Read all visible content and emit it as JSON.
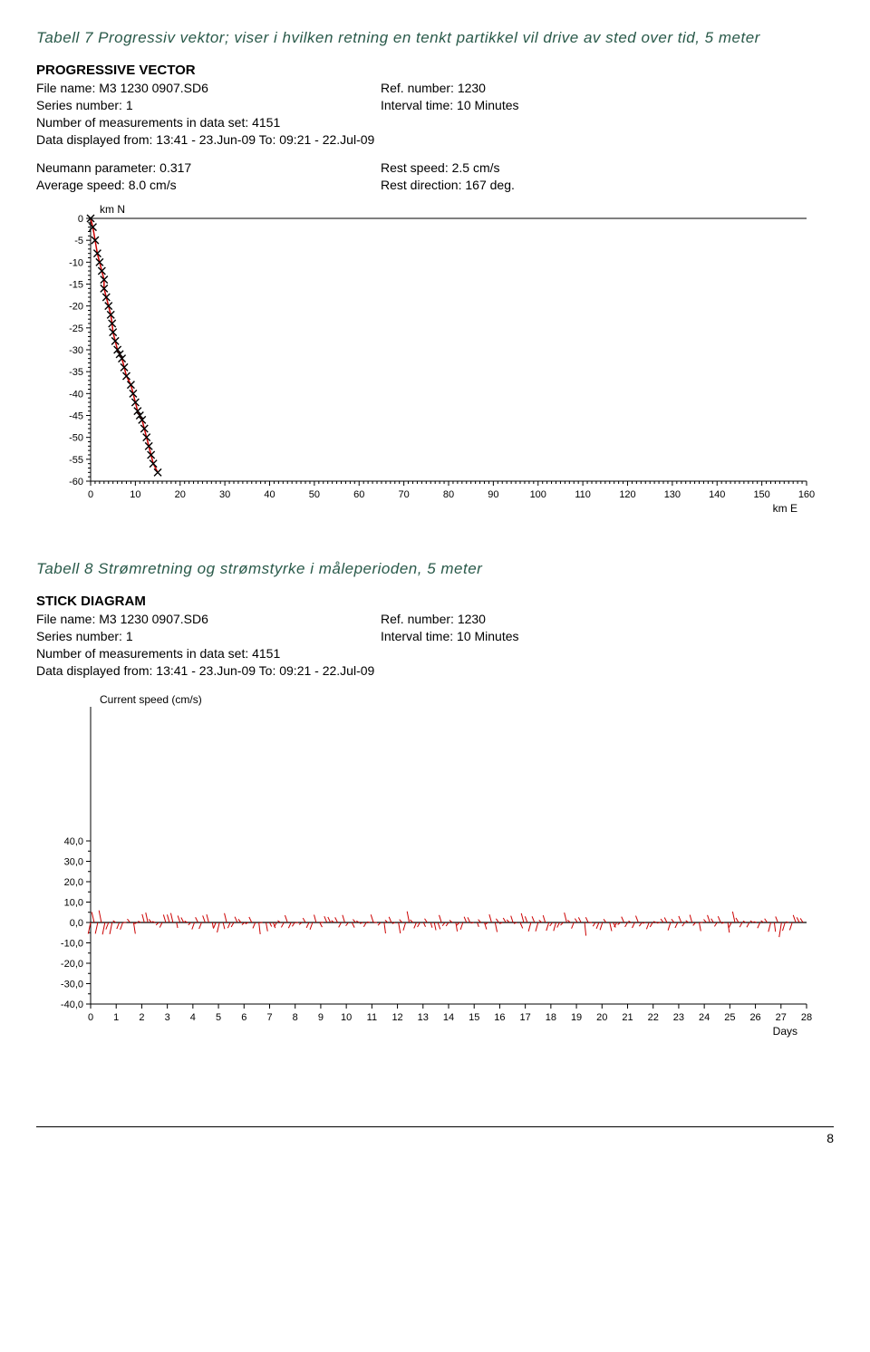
{
  "table7": {
    "caption": "Tabell 7 Progressiv vektor; viser i hvilken retning en tenkt partikkel vil drive av sted over tid, 5 meter",
    "title": "PROGRESSIVE VECTOR",
    "file_name": "File name: M3 1230 0907.SD6",
    "ref_number": "Ref. number: 1230",
    "series_number": "Series number: 1",
    "interval_time": "Interval time: 10 Minutes",
    "measurements": "Number of measurements in data set: 4151",
    "data_displayed": "Data displayed from: 13:41 - 23.Jun-09   To: 09:21 - 22.Jul-09",
    "neumann": "Neumann parameter: 0.317",
    "rest_speed": "Rest speed: 2.5 cm/s",
    "avg_speed": "Average speed: 8.0 cm/s",
    "rest_dir": "Rest direction: 167 deg.",
    "y_label": "km N",
    "x_label": "km E",
    "y_ticks": [
      0,
      -5,
      -10,
      -15,
      -20,
      -25,
      -30,
      -35,
      -40,
      -45,
      -50,
      -55,
      -60
    ],
    "x_ticks": [
      0,
      10,
      20,
      30,
      40,
      50,
      60,
      70,
      80,
      90,
      100,
      110,
      120,
      130,
      140,
      150,
      160
    ],
    "xlim": [
      0,
      160
    ],
    "ylim": [
      -60,
      0
    ],
    "marker_color": "#000000",
    "line_color": "#cc0000",
    "axis_color": "#000000",
    "tick_fontsize": 11,
    "label_fontsize": 12,
    "points": [
      [
        0,
        0
      ],
      [
        0.5,
        -2
      ],
      [
        1,
        -5
      ],
      [
        1.5,
        -8
      ],
      [
        2,
        -10
      ],
      [
        2.5,
        -12
      ],
      [
        3,
        -14
      ],
      [
        3,
        -16
      ],
      [
        3.5,
        -18
      ],
      [
        4,
        -20
      ],
      [
        4.5,
        -22
      ],
      [
        4.8,
        -24
      ],
      [
        5,
        -26
      ],
      [
        5.5,
        -28
      ],
      [
        6,
        -30
      ],
      [
        6.5,
        -31
      ],
      [
        7,
        -32
      ],
      [
        7.5,
        -34
      ],
      [
        8,
        -36
      ],
      [
        9,
        -38
      ],
      [
        9.5,
        -40
      ],
      [
        10,
        -42
      ],
      [
        10.5,
        -44
      ],
      [
        11,
        -45
      ],
      [
        11.5,
        -46
      ],
      [
        12,
        -48
      ],
      [
        12.5,
        -50
      ],
      [
        13,
        -52
      ],
      [
        13.5,
        -54
      ],
      [
        14,
        -56
      ],
      [
        15,
        -58
      ]
    ]
  },
  "table8": {
    "caption": "Tabell 8 Strømretning og strømstyrke i måleperioden, 5 meter",
    "title": "STICK DIAGRAM",
    "file_name": "File name: M3 1230 0907.SD6",
    "ref_number": "Ref. number: 1230",
    "series_number": "Series number: 1",
    "interval_time": "Interval time: 10 Minutes",
    "measurements": "Number of measurements in data set: 4151",
    "data_displayed": "Data displayed from: 13:41 - 23.Jun-09   To: 09:21 - 22.Jul-09",
    "y_label": "Current speed (cm/s)",
    "x_label": "Days",
    "y_ticks": [
      "40,0",
      "30,0",
      "20,0",
      "10,0",
      "0,0",
      "-10,0",
      "-20,0",
      "-30,0",
      "-40,0"
    ],
    "y_values": [
      40,
      30,
      20,
      10,
      0,
      -10,
      -20,
      -30,
      -40
    ],
    "x_ticks": [
      0,
      1,
      2,
      3,
      4,
      5,
      6,
      7,
      8,
      9,
      10,
      11,
      12,
      13,
      14,
      15,
      16,
      17,
      18,
      19,
      20,
      21,
      22,
      23,
      24,
      25,
      26,
      27,
      28
    ],
    "xlim": [
      0,
      28
    ],
    "ylim": [
      -40,
      40
    ],
    "stick_color": "#cc0000",
    "baseline_color": "#000000",
    "axis_color": "#000000",
    "tick_fontsize": 11,
    "label_fontsize": 12
  },
  "page_number": "8"
}
